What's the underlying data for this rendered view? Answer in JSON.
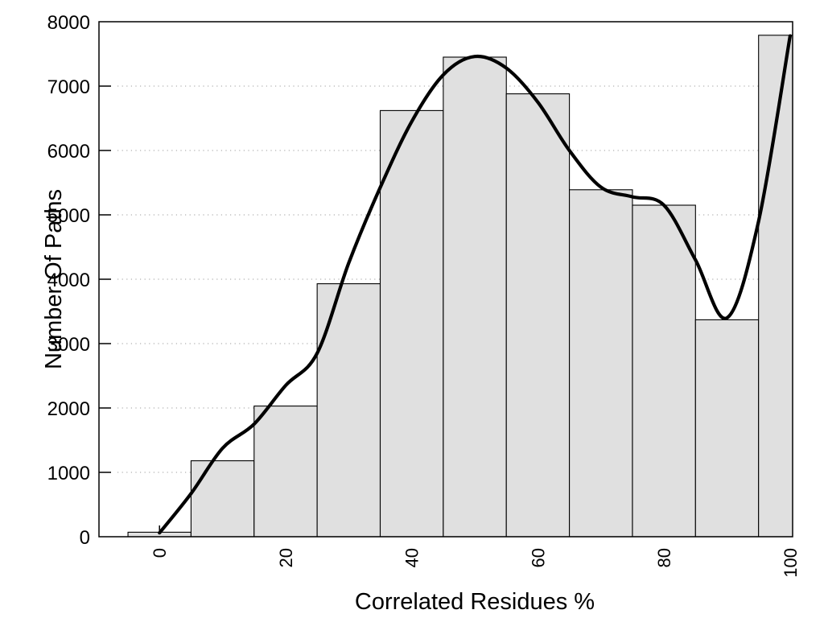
{
  "chart_data": {
    "type": "bar",
    "subtype": "histogram-with-smoothed-curve",
    "title": "",
    "xlabel": "Correlated Residues %",
    "ylabel": "Number Of Paths",
    "xlim": [
      -9.6,
      100.4
    ],
    "ylim": [
      0,
      8000
    ],
    "x_ticks": [
      0,
      20,
      40,
      60,
      80,
      100
    ],
    "y_ticks": [
      0,
      1000,
      2000,
      3000,
      4000,
      5000,
      6000,
      7000,
      8000
    ],
    "background": "#ffffff",
    "frame_color": "#000000",
    "grid": {
      "horizontal": "dotted",
      "color": "#b0b0b0",
      "legend": "none"
    },
    "bars": {
      "bin_width": 10,
      "centers": [
        0,
        10,
        20,
        30,
        40,
        50,
        60,
        70,
        80,
        90,
        100
      ],
      "values": [
        70,
        1180,
        2030,
        3930,
        6620,
        7450,
        6880,
        5390,
        5150,
        3370,
        7790
      ],
      "fill_color": "#e0e0e0",
      "edge_color": "#000000",
      "note": "last bin clipped at x=100"
    },
    "curve": {
      "name": "smoothed-trend",
      "color": "#000000",
      "stroke_width": 4.2,
      "points_x": [
        0,
        5,
        10,
        15,
        20,
        25,
        30,
        35,
        40,
        45,
        50,
        55,
        60,
        65,
        70,
        75,
        80,
        85,
        90,
        95,
        100
      ],
      "points_y": [
        60,
        670,
        1375,
        1750,
        2350,
        2850,
        4250,
        5425,
        6450,
        7175,
        7460,
        7280,
        6750,
        6000,
        5430,
        5280,
        5150,
        4300,
        3400,
        4900,
        7780
      ]
    }
  }
}
